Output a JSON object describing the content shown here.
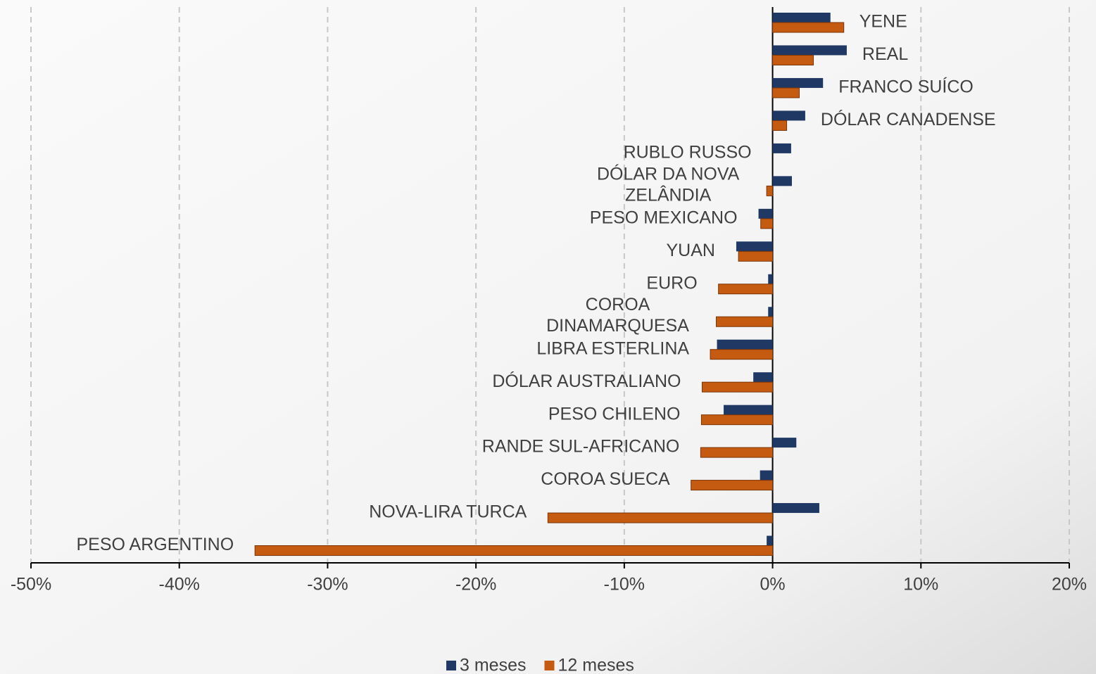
{
  "chart_data": {
    "type": "bar",
    "orientation": "horizontal",
    "categories": [
      "YENE",
      "REAL",
      "FRANCO SUÍCO",
      "DÓLAR CANADENSE",
      "RUBLO RUSSO",
      "DÓLAR DA NOVA ZELÂNDIA",
      "PESO MEXICANO",
      "YUAN",
      "EURO",
      "COROA DINAMARQUESA",
      "LIBRA ESTERLINA",
      "DÓLAR AUSTRALIANO",
      "PESO CHILENO",
      "RANDE SUL-AFRICANO",
      "COROA SUECA",
      "NOVA-LIRA TURCA",
      "PESO ARGENTINO"
    ],
    "series": [
      {
        "name": "3 meses",
        "color": "#1f3864",
        "values": [
          3.9,
          5.0,
          3.4,
          2.2,
          1.25,
          1.3,
          -0.95,
          -2.45,
          -0.3,
          -0.3,
          -3.75,
          -1.3,
          -3.3,
          1.6,
          -0.85,
          3.15,
          -0.4
        ]
      },
      {
        "name": "12 meses",
        "color": "#c55a11",
        "values": [
          4.8,
          2.75,
          1.8,
          0.95,
          0,
          -0.4,
          -0.8,
          -2.3,
          -3.65,
          -3.8,
          -4.2,
          -4.75,
          -4.8,
          -4.85,
          -5.5,
          -15.15,
          -34.9
        ]
      }
    ],
    "xlim": [
      -50,
      20
    ],
    "xticks": [
      {
        "value": -50,
        "label": "-50%"
      },
      {
        "value": -40,
        "label": "-40%"
      },
      {
        "value": -30,
        "label": "-30%"
      },
      {
        "value": -20,
        "label": "-20%"
      },
      {
        "value": -10,
        "label": "-10%"
      },
      {
        "value": 0,
        "label": "0%"
      },
      {
        "value": 10,
        "label": "10%"
      },
      {
        "value": 20,
        "label": "20%"
      }
    ],
    "grid": true,
    "legend": "bottom"
  }
}
